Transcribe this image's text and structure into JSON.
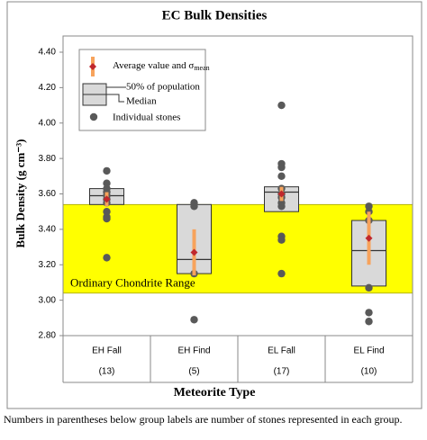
{
  "chart_data": {
    "type": "box",
    "title": "EC Bulk Densities",
    "y_label": "Bulk Density (g cm⁻³)",
    "x_label": "Meteorite Type",
    "categories": [
      "EH Fall",
      "EH Find",
      "EL Fall",
      "EL Find"
    ],
    "count_labels": [
      "(13)",
      "(5)",
      "(17)",
      "(10)"
    ],
    "ylim": [
      2.8,
      4.4
    ],
    "yticks": [
      {
        "value": 2.8,
        "label": "2.80"
      },
      {
        "value": 3.0,
        "label": "3.00"
      },
      {
        "value": 3.2,
        "label": "3.20"
      },
      {
        "value": 3.4,
        "label": "3.40"
      },
      {
        "value": 3.6,
        "label": "3.60"
      },
      {
        "value": 3.8,
        "label": "3.80"
      },
      {
        "value": 4.0,
        "label": "4.00"
      },
      {
        "value": 4.2,
        "label": "4.20"
      },
      {
        "value": 4.4,
        "label": "4.40"
      }
    ],
    "range_band": {
      "lim": [
        3.04,
        3.54
      ],
      "label": "Ordinary Chondrite Range",
      "color": "#ffff00"
    },
    "box_color": "#d9d9d9",
    "error_color": "#f7a35c",
    "mean_color": "#c0282d",
    "point_color": "#595959",
    "boxes": [
      {
        "q1": 3.54,
        "median": 3.59,
        "q3": 3.63,
        "mean": 3.57,
        "error": 0.04,
        "points": [
          3.73,
          3.66,
          3.63,
          3.61,
          3.59,
          3.57,
          3.55,
          3.5,
          3.47,
          3.46,
          3.24
        ]
      },
      {
        "q1": 3.15,
        "median": 3.23,
        "q3": 3.54,
        "mean": 3.27,
        "error": 0.13,
        "points": [
          3.55,
          3.53,
          3.15,
          2.89
        ]
      },
      {
        "q1": 3.5,
        "median": 3.61,
        "q3": 3.64,
        "mean": 3.6,
        "error": 0.04,
        "points": [
          4.1,
          3.77,
          3.75,
          3.7,
          3.63,
          3.6,
          3.58,
          3.55,
          3.53,
          3.36,
          3.34,
          3.15
        ]
      },
      {
        "q1": 3.08,
        "median": 3.28,
        "q3": 3.45,
        "mean": 3.35,
        "error": 0.15,
        "points": [
          3.53,
          3.5,
          3.45,
          3.07,
          2.93,
          2.88
        ]
      }
    ],
    "legend": {
      "mean": "Average value and σ",
      "mean_sub": "mean",
      "box": "50% of population",
      "median": "Median",
      "points": "Individual stones"
    },
    "caption": "Numbers in parentheses below group labels are number of stones represented in each group."
  }
}
